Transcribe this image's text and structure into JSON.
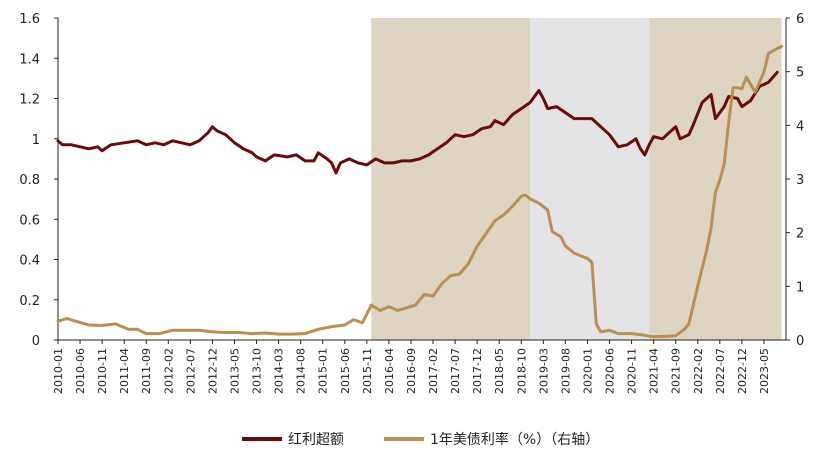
{
  "chart_data": {
    "type": "line",
    "title": "",
    "xlabel": "",
    "ylabel": "",
    "ylabel_right": "",
    "ylim_left": [
      0,
      1.6
    ],
    "ylim_right": [
      0,
      6
    ],
    "yticks_left": [
      "0",
      "0.2",
      "0.4",
      "0.6",
      "0.8",
      "1",
      "1.2",
      "1.4",
      "1.6"
    ],
    "yticks_right": [
      "0",
      "1",
      "2",
      "3",
      "4",
      "5",
      "6"
    ],
    "xticks": [
      "2010-01",
      "2010-06",
      "2010-11",
      "2011-04",
      "2011-09",
      "2012-02",
      "2012-07",
      "2012-12",
      "2013-05",
      "2013-10",
      "2014-03",
      "2014-08",
      "2015-01",
      "2015-06",
      "2015-11",
      "2016-04",
      "2016-09",
      "2017-02",
      "2017-07",
      "2017-12",
      "2018-05",
      "2018-10",
      "2019-03",
      "2019-08",
      "2020-01",
      "2020-06",
      "2020-11",
      "2021-04",
      "2021-09",
      "2022-02",
      "2022-07",
      "2022-12",
      "2023-05"
    ],
    "shaded_periods": [
      {
        "start": "2015-12",
        "end": "2018-12",
        "color": "#ddd5c2"
      },
      {
        "start": "2018-12",
        "end": "2021-03",
        "color": "#e4e4e6"
      },
      {
        "start": "2021-03",
        "end": "2023-09",
        "color": "#ddd5c2"
      }
    ],
    "series": [
      {
        "name": "红利超额",
        "axis": "left",
        "color": "#6b0a0a",
        "points": [
          [
            "2010-01",
            0.99
          ],
          [
            "2010-02",
            0.97
          ],
          [
            "2010-04",
            0.97
          ],
          [
            "2010-06",
            0.96
          ],
          [
            "2010-08",
            0.95
          ],
          [
            "2010-10",
            0.96
          ],
          [
            "2010-11",
            0.94
          ],
          [
            "2011-01",
            0.97
          ],
          [
            "2011-04",
            0.98
          ],
          [
            "2011-07",
            0.99
          ],
          [
            "2011-09",
            0.97
          ],
          [
            "2011-11",
            0.98
          ],
          [
            "2012-01",
            0.97
          ],
          [
            "2012-03",
            0.99
          ],
          [
            "2012-05",
            0.98
          ],
          [
            "2012-07",
            0.97
          ],
          [
            "2012-09",
            0.99
          ],
          [
            "2012-11",
            1.03
          ],
          [
            "2012-12",
            1.06
          ],
          [
            "2013-01",
            1.04
          ],
          [
            "2013-03",
            1.02
          ],
          [
            "2013-05",
            0.98
          ],
          [
            "2013-07",
            0.95
          ],
          [
            "2013-09",
            0.93
          ],
          [
            "2013-10",
            0.91
          ],
          [
            "2013-12",
            0.89
          ],
          [
            "2014-02",
            0.92
          ],
          [
            "2014-05",
            0.91
          ],
          [
            "2014-07",
            0.92
          ],
          [
            "2014-09",
            0.89
          ],
          [
            "2014-11",
            0.89
          ],
          [
            "2014-12",
            0.93
          ],
          [
            "2015-02",
            0.9
          ],
          [
            "2015-03",
            0.88
          ],
          [
            "2015-04",
            0.83
          ],
          [
            "2015-05",
            0.88
          ],
          [
            "2015-07",
            0.9
          ],
          [
            "2015-09",
            0.88
          ],
          [
            "2015-11",
            0.87
          ],
          [
            "2016-01",
            0.9
          ],
          [
            "2016-03",
            0.88
          ],
          [
            "2016-05",
            0.88
          ],
          [
            "2016-07",
            0.89
          ],
          [
            "2016-09",
            0.89
          ],
          [
            "2016-11",
            0.9
          ],
          [
            "2017-01",
            0.92
          ],
          [
            "2017-03",
            0.95
          ],
          [
            "2017-05",
            0.98
          ],
          [
            "2017-07",
            1.02
          ],
          [
            "2017-09",
            1.01
          ],
          [
            "2017-11",
            1.02
          ],
          [
            "2018-01",
            1.05
          ],
          [
            "2018-03",
            1.06
          ],
          [
            "2018-04",
            1.09
          ],
          [
            "2018-06",
            1.07
          ],
          [
            "2018-08",
            1.12
          ],
          [
            "2018-10",
            1.15
          ],
          [
            "2018-12",
            1.18
          ],
          [
            "2019-02",
            1.24
          ],
          [
            "2019-03",
            1.2
          ],
          [
            "2019-04",
            1.15
          ],
          [
            "2019-06",
            1.16
          ],
          [
            "2019-08",
            1.13
          ],
          [
            "2019-10",
            1.1
          ],
          [
            "2019-12",
            1.1
          ],
          [
            "2020-02",
            1.1
          ],
          [
            "2020-04",
            1.06
          ],
          [
            "2020-06",
            1.02
          ],
          [
            "2020-08",
            0.96
          ],
          [
            "2020-10",
            0.97
          ],
          [
            "2020-12",
            1.0
          ],
          [
            "2021-01",
            0.95
          ],
          [
            "2021-02",
            0.92
          ],
          [
            "2021-03",
            0.97
          ],
          [
            "2021-04",
            1.01
          ],
          [
            "2021-06",
            1.0
          ],
          [
            "2021-07",
            1.02
          ],
          [
            "2021-09",
            1.06
          ],
          [
            "2021-10",
            1.0
          ],
          [
            "2021-12",
            1.02
          ],
          [
            "2022-01",
            1.07
          ],
          [
            "2022-03",
            1.18
          ],
          [
            "2022-05",
            1.22
          ],
          [
            "2022-06",
            1.1
          ],
          [
            "2022-08",
            1.16
          ],
          [
            "2022-09",
            1.21
          ],
          [
            "2022-11",
            1.2
          ],
          [
            "2022-12",
            1.16
          ],
          [
            "2023-02",
            1.19
          ],
          [
            "2023-04",
            1.26
          ],
          [
            "2023-06",
            1.28
          ],
          [
            "2023-08",
            1.33
          ]
        ]
      },
      {
        "name": "1年美债利率（%）（右轴）",
        "axis": "right",
        "color": "#b98f53",
        "points": [
          [
            "2010-01",
            0.35
          ],
          [
            "2010-03",
            0.4
          ],
          [
            "2010-05",
            0.35
          ],
          [
            "2010-08",
            0.28
          ],
          [
            "2010-11",
            0.27
          ],
          [
            "2011-02",
            0.3
          ],
          [
            "2011-05",
            0.2
          ],
          [
            "2011-07",
            0.2
          ],
          [
            "2011-09",
            0.12
          ],
          [
            "2011-12",
            0.12
          ],
          [
            "2012-03",
            0.18
          ],
          [
            "2012-06",
            0.18
          ],
          [
            "2012-09",
            0.18
          ],
          [
            "2012-12",
            0.15
          ],
          [
            "2013-03",
            0.14
          ],
          [
            "2013-06",
            0.14
          ],
          [
            "2013-09",
            0.12
          ],
          [
            "2013-12",
            0.13
          ],
          [
            "2014-03",
            0.11
          ],
          [
            "2014-06",
            0.11
          ],
          [
            "2014-09",
            0.12
          ],
          [
            "2014-12",
            0.2
          ],
          [
            "2015-03",
            0.25
          ],
          [
            "2015-06",
            0.28
          ],
          [
            "2015-08",
            0.38
          ],
          [
            "2015-10",
            0.32
          ],
          [
            "2015-12",
            0.65
          ],
          [
            "2016-02",
            0.55
          ],
          [
            "2016-04",
            0.62
          ],
          [
            "2016-06",
            0.55
          ],
          [
            "2016-08",
            0.6
          ],
          [
            "2016-10",
            0.65
          ],
          [
            "2016-12",
            0.85
          ],
          [
            "2017-02",
            0.82
          ],
          [
            "2017-04",
            1.05
          ],
          [
            "2017-06",
            1.2
          ],
          [
            "2017-08",
            1.23
          ],
          [
            "2017-10",
            1.42
          ],
          [
            "2017-12",
            1.75
          ],
          [
            "2018-02",
            1.98
          ],
          [
            "2018-04",
            2.22
          ],
          [
            "2018-06",
            2.33
          ],
          [
            "2018-08",
            2.49
          ],
          [
            "2018-10",
            2.68
          ],
          [
            "2018-11",
            2.7
          ],
          [
            "2018-12",
            2.63
          ],
          [
            "2019-02",
            2.55
          ],
          [
            "2019-04",
            2.42
          ],
          [
            "2019-05",
            2.02
          ],
          [
            "2019-07",
            1.92
          ],
          [
            "2019-08",
            1.75
          ],
          [
            "2019-10",
            1.62
          ],
          [
            "2019-12",
            1.55
          ],
          [
            "2020-01",
            1.52
          ],
          [
            "2020-02",
            1.45
          ],
          [
            "2020-03",
            0.3
          ],
          [
            "2020-04",
            0.15
          ],
          [
            "2020-06",
            0.18
          ],
          [
            "2020-08",
            0.12
          ],
          [
            "2020-11",
            0.12
          ],
          [
            "2021-01",
            0.1
          ],
          [
            "2021-04",
            0.06
          ],
          [
            "2021-07",
            0.07
          ],
          [
            "2021-09",
            0.08
          ],
          [
            "2021-11",
            0.2
          ],
          [
            "2021-12",
            0.3
          ],
          [
            "2022-02",
            1.01
          ],
          [
            "2022-04",
            1.67
          ],
          [
            "2022-05",
            2.08
          ],
          [
            "2022-06",
            2.75
          ],
          [
            "2022-07",
            2.98
          ],
          [
            "2022-08",
            3.28
          ],
          [
            "2022-09",
            4.04
          ],
          [
            "2022-10",
            4.7
          ],
          [
            "2022-11",
            4.7
          ],
          [
            "2022-12",
            4.68
          ],
          [
            "2023-01",
            4.9
          ],
          [
            "2023-03",
            4.62
          ],
          [
            "2023-05",
            4.99
          ],
          [
            "2023-06",
            5.34
          ],
          [
            "2023-08",
            5.43
          ],
          [
            "2023-09",
            5.47
          ]
        ]
      }
    ],
    "legend": {
      "position": "bottom-center"
    }
  }
}
